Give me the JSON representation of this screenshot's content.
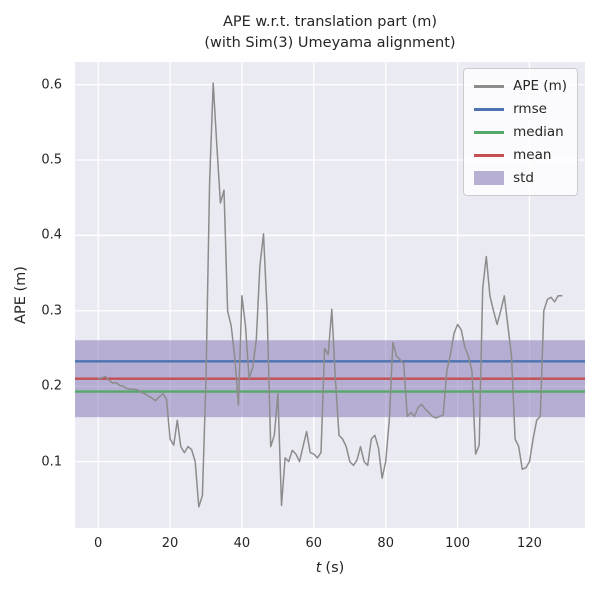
{
  "figure": {
    "title_line1": "APE w.r.t. translation part (m)",
    "title_line2": "(with Sim(3) Umeyama alignment)"
  },
  "axes": {
    "ylabel": "APE (m)",
    "xlabel_var": "t",
    "xlabel_unit": "(s)"
  },
  "legend": {
    "items": [
      {
        "label": "APE (m)",
        "type": "line",
        "color": "#8c8c8c"
      },
      {
        "label": "rmse",
        "type": "line",
        "color": "#4c72b0"
      },
      {
        "label": "median",
        "type": "line",
        "color": "#55a868"
      },
      {
        "label": "mean",
        "type": "line",
        "color": "#c44e52"
      },
      {
        "label": "std",
        "type": "patch",
        "color": "rgba(129,114,178,0.55)"
      }
    ]
  },
  "colors": {
    "figure_background": "#ffffff",
    "axes_background": "#eaeaf2",
    "grid": "#ffffff",
    "text": "#262626",
    "ape_line": "#8c8c8c",
    "rmse_line": "#4c72b0",
    "median_line": "#55a868",
    "mean_line": "#c44e52",
    "std_band": "rgba(129,114,178,0.5)"
  },
  "chart_data": {
    "type": "line",
    "title": "APE w.r.t. translation part (m) (with Sim(3) Umeyama alignment)",
    "xlabel": "t (s)",
    "ylabel": "APE (m)",
    "xlim": [
      -6.45,
      135.45
    ],
    "ylim": [
      0.012,
      0.63
    ],
    "xticks": [
      0,
      20,
      40,
      60,
      80,
      100,
      120
    ],
    "xtick_labels": [
      "0",
      "20",
      "40",
      "60",
      "80",
      "100",
      "120"
    ],
    "yticks": [
      0.1,
      0.2,
      0.3,
      0.4,
      0.5,
      0.6
    ],
    "ytick_labels": [
      "0.1",
      "0.2",
      "0.3",
      "0.4",
      "0.5",
      "0.6"
    ],
    "grid": true,
    "legend_position": "upper right",
    "stats": {
      "rmse": 0.233,
      "mean": 0.21,
      "median": 0.193,
      "std": 0.051
    },
    "series": [
      {
        "name": "APE (m)",
        "x": [
          0,
          1,
          2,
          3,
          4,
          5,
          6,
          7,
          8,
          9,
          10,
          11,
          12,
          13,
          14,
          15,
          16,
          17,
          18,
          19,
          20,
          21,
          22,
          23,
          24,
          25,
          26,
          27,
          28,
          29,
          30,
          31,
          32,
          33,
          34,
          35,
          36,
          37,
          38,
          39,
          40,
          41,
          42,
          43,
          44,
          45,
          46,
          47,
          48,
          49,
          50,
          51,
          52,
          53,
          54,
          55,
          56,
          57,
          58,
          59,
          60,
          61,
          62,
          63,
          64,
          65,
          66,
          67,
          68,
          69,
          70,
          71,
          72,
          73,
          74,
          75,
          76,
          77,
          78,
          79,
          80,
          81,
          82,
          83,
          84,
          85,
          86,
          87,
          88,
          89,
          90,
          91,
          92,
          93,
          94,
          95,
          96,
          97,
          98,
          99,
          100,
          101,
          102,
          103,
          104,
          105,
          106,
          107,
          108,
          109,
          110,
          111,
          112,
          113,
          114,
          115,
          116,
          117,
          118,
          119,
          120,
          121,
          122,
          123,
          124,
          125,
          126,
          127,
          128,
          129
        ],
        "y": [
          0.21,
          0.211,
          0.213,
          0.208,
          0.204,
          0.205,
          0.201,
          0.2,
          0.197,
          0.196,
          0.196,
          0.195,
          0.192,
          0.19,
          0.187,
          0.184,
          0.181,
          0.186,
          0.19,
          0.183,
          0.13,
          0.122,
          0.155,
          0.12,
          0.112,
          0.12,
          0.116,
          0.1,
          0.04,
          0.055,
          0.21,
          0.47,
          0.602,
          0.52,
          0.443,
          0.46,
          0.3,
          0.28,
          0.238,
          0.175,
          0.32,
          0.28,
          0.21,
          0.225,
          0.262,
          0.36,
          0.402,
          0.3,
          0.12,
          0.135,
          0.19,
          0.042,
          0.105,
          0.1,
          0.115,
          0.11,
          0.1,
          0.12,
          0.14,
          0.112,
          0.11,
          0.105,
          0.112,
          0.25,
          0.242,
          0.302,
          0.21,
          0.135,
          0.13,
          0.12,
          0.1,
          0.095,
          0.102,
          0.12,
          0.1,
          0.095,
          0.13,
          0.135,
          0.118,
          0.078,
          0.1,
          0.155,
          0.258,
          0.24,
          0.235,
          0.23,
          0.16,
          0.165,
          0.16,
          0.172,
          0.176,
          0.17,
          0.165,
          0.16,
          0.158,
          0.16,
          0.162,
          0.22,
          0.242,
          0.27,
          0.282,
          0.275,
          0.252,
          0.24,
          0.22,
          0.11,
          0.122,
          0.33,
          0.372,
          0.32,
          0.3,
          0.282,
          0.3,
          0.32,
          0.28,
          0.24,
          0.13,
          0.12,
          0.09,
          0.092,
          0.1,
          0.13,
          0.155,
          0.16,
          0.3,
          0.315,
          0.318,
          0.312,
          0.32,
          0.32
        ]
      }
    ]
  }
}
